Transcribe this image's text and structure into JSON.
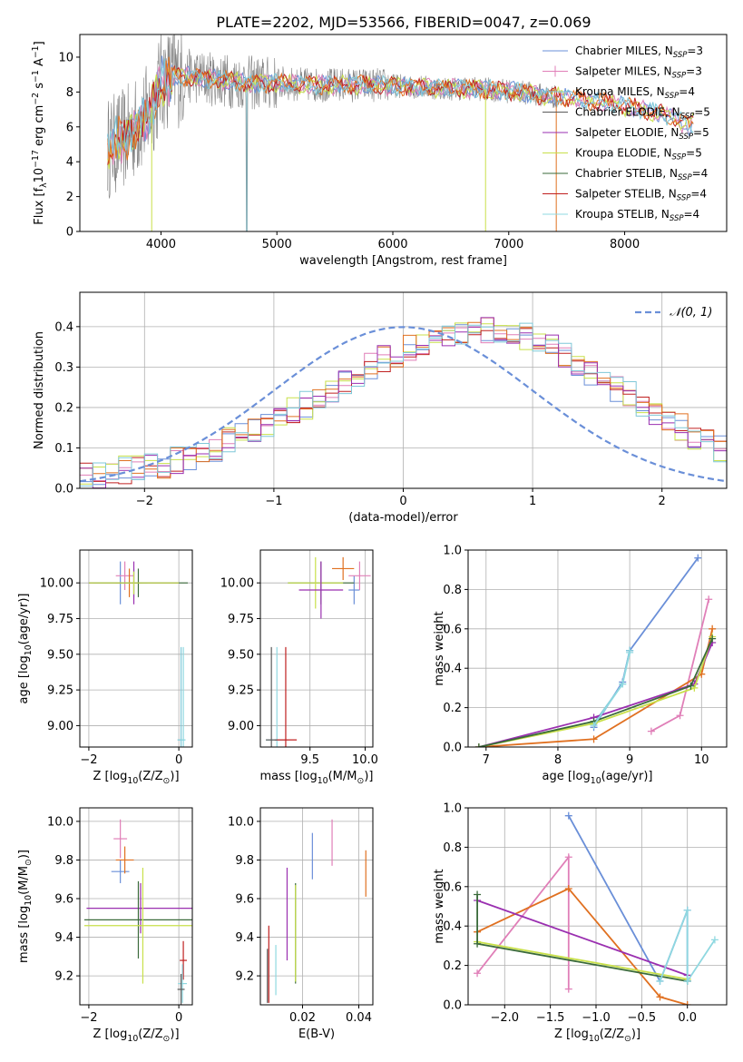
{
  "figure": {
    "title": "PLATE=2202, MJD=53566, FIBERID=0047, z=0.069"
  },
  "colors": {
    "chabrier_miles": "#6a8fd8",
    "salpeter_miles": "#e07fb8",
    "kroupa_miles": "#7fc8d8",
    "chabrier_elodie": "#5a5a5a",
    "salpeter_elodie": "#9a2fb0",
    "kroupa_elodie": "#c8e04a",
    "chabrier_stelib": "#3a6a3a",
    "salpeter_stelib": "#c02020",
    "kroupa_stelib": "#8fd8e0",
    "orange": "#e07020",
    "gray_data": "#808080",
    "normal_curve": "#6a8fd8",
    "grid": "#b0b0b0"
  },
  "chart_data": [
    {
      "id": "spectrum",
      "type": "line",
      "xlabel": "wavelength [Angstrom, rest frame]",
      "ylabel_parts": [
        "Flux [f",
        "λ",
        "10",
        "−17",
        " erg cm",
        "−2",
        " s",
        "−1",
        " A",
        "−1",
        "]"
      ],
      "xlim": [
        3300,
        8880
      ],
      "ylim": [
        0,
        11.3
      ],
      "xticks": [
        4000,
        5000,
        6000,
        7000,
        8000
      ],
      "yticks": [
        0,
        2,
        4,
        6,
        8,
        10
      ],
      "grid": false,
      "legend_position": "top-right",
      "legend": [
        {
          "label": "Chabrier MILES, N",
          "sub": "SSP",
          "tail": "=3",
          "color_key": "chabrier_miles"
        },
        {
          "label": "Salpeter MILES, N",
          "sub": "SSP",
          "tail": "=3",
          "color_key": "salpeter_miles"
        },
        {
          "label": "Kroupa MILES, N",
          "sub": "SSP",
          "tail": "=4",
          "color_key": "kroupa_miles"
        },
        {
          "label": "Chabrier ELODIE, N",
          "sub": "SSP",
          "tail": "=5",
          "color_key": "chabrier_elodie"
        },
        {
          "label": "Salpeter ELODIE, N",
          "sub": "SSP",
          "tail": "=5",
          "color_key": "salpeter_elodie"
        },
        {
          "label": "Kroupa ELODIE, N",
          "sub": "SSP",
          "tail": "=5",
          "color_key": "kroupa_elodie"
        },
        {
          "label": "Chabrier STELIB, N",
          "sub": "SSP",
          "tail": "=4",
          "color_key": "chabrier_stelib"
        },
        {
          "label": "Salpeter STELIB, N",
          "sub": "SSP",
          "tail": "=4",
          "color_key": "salpeter_stelib"
        },
        {
          "label": "Kroupa STELIB, N",
          "sub": "SSP",
          "tail": "=4",
          "color_key": "kroupa_stelib"
        }
      ],
      "continuum": [
        [
          3500,
          4.6
        ],
        [
          3700,
          5.4
        ],
        [
          3900,
          6.8
        ],
        [
          4000,
          8.6
        ],
        [
          4100,
          8.9
        ],
        [
          4300,
          8.9
        ],
        [
          4500,
          8.7
        ],
        [
          4800,
          8.5
        ],
        [
          5000,
          8.5
        ],
        [
          5300,
          8.4
        ],
        [
          5600,
          8.4
        ],
        [
          5900,
          8.4
        ],
        [
          6200,
          8.3
        ],
        [
          6500,
          8.2
        ],
        [
          6700,
          8.2
        ],
        [
          6900,
          8.1
        ],
        [
          7100,
          8.0
        ],
        [
          7300,
          7.8
        ],
        [
          7600,
          7.6
        ],
        [
          7800,
          7.4
        ],
        [
          8000,
          7.2
        ],
        [
          8200,
          6.9
        ],
        [
          8400,
          6.6
        ],
        [
          8560,
          6.0
        ],
        [
          8600,
          6.4
        ]
      ]
    },
    {
      "id": "residual-hist",
      "type": "step",
      "xlabel": "(data-model)/error",
      "ylabel": "Normed distribution",
      "xlim": [
        -2.5,
        2.5
      ],
      "ylim": [
        0,
        0.485
      ],
      "xticks": [
        -2,
        -1,
        0,
        1,
        2
      ],
      "yticks": [
        0.0,
        0.1,
        0.2,
        0.3,
        0.4
      ],
      "grid": true,
      "legend_position": "top-right",
      "legend_label": "𝒩(0, 1)",
      "bin_width": 0.1,
      "bin_start": -2.5,
      "base_hist": [
        0.03,
        0.035,
        0.04,
        0.045,
        0.05,
        0.055,
        0.06,
        0.07,
        0.08,
        0.09,
        0.1,
        0.12,
        0.13,
        0.145,
        0.16,
        0.175,
        0.19,
        0.205,
        0.22,
        0.24,
        0.26,
        0.28,
        0.3,
        0.32,
        0.335,
        0.35,
        0.36,
        0.37,
        0.38,
        0.385,
        0.39,
        0.395,
        0.39,
        0.385,
        0.375,
        0.36,
        0.35,
        0.33,
        0.31,
        0.29,
        0.27,
        0.25,
        0.23,
        0.21,
        0.19,
        0.17,
        0.15,
        0.13,
        0.11,
        0.095
      ]
    },
    {
      "id": "age-vs-Z",
      "type": "errorbar",
      "xlabel_parts": [
        "Z [log",
        "10",
        "(Z/Z",
        "⊙",
        ")]"
      ],
      "ylabel_parts": [
        "age  [log",
        "10",
        "(age/yr)]"
      ],
      "xlim": [
        -2.2,
        0.3
      ],
      "ylim": [
        8.85,
        10.23
      ],
      "xticks": [
        -2,
        0
      ],
      "yticks": [
        9.0,
        9.25,
        9.5,
        9.75,
        10.0
      ],
      "grid": true,
      "points": [
        {
          "x": -1.3,
          "y": 10.0,
          "xerr": 0.6,
          "yerr": 0.15,
          "c": "chabrier_miles"
        },
        {
          "x": -1.2,
          "y": 10.05,
          "xerr": 0.2,
          "yerr": 0.1,
          "c": "salpeter_miles"
        },
        {
          "x": -1.1,
          "y": 10.0,
          "xerr": 0.3,
          "yerr": 0.1,
          "c": "orange"
        },
        {
          "x": -1.0,
          "y": 10.0,
          "xerr": 0.3,
          "yerr": 0.1,
          "c": "kroupa_miles"
        },
        {
          "x": -1.0,
          "y": 10.0,
          "xerr": 1.0,
          "yerr": 0.15,
          "c": "salpeter_elodie"
        },
        {
          "x": -0.9,
          "y": 10.0,
          "xerr": 1.1,
          "yerr": 0.1,
          "c": "chabrier_stelib"
        },
        {
          "x": -1.0,
          "y": 10.0,
          "xerr": 1.0,
          "yerr": 0.08,
          "c": "kroupa_elodie"
        },
        {
          "x": 0.05,
          "y": 8.9,
          "xerr": 0.08,
          "yerr": 0.65,
          "c": "kroupa_miles"
        },
        {
          "x": 0.1,
          "y": 8.9,
          "xerr": 0.05,
          "yerr": 0.65,
          "c": "kroupa_stelib"
        }
      ]
    },
    {
      "id": "age-vs-mass",
      "type": "errorbar",
      "xlabel_parts": [
        "mass [log",
        "10",
        "(M/M",
        "⊙",
        ")]"
      ],
      "xlim": [
        9.05,
        10.07
      ],
      "ylim": [
        8.85,
        10.23
      ],
      "xticks": [
        9.5,
        10.0
      ],
      "yticks": [
        9.0,
        9.25,
        9.5,
        9.75,
        10.0
      ],
      "grid": true,
      "points": [
        {
          "x": 9.9,
          "y": 9.95,
          "xerr": 0.05,
          "yerr": 0.1,
          "c": "chabrier_miles"
        },
        {
          "x": 9.95,
          "y": 10.05,
          "xerr": 0.1,
          "yerr": 0.1,
          "c": "salpeter_miles"
        },
        {
          "x": 9.8,
          "y": 10.1,
          "xerr": 0.1,
          "yerr": 0.08,
          "c": "orange"
        },
        {
          "x": 9.6,
          "y": 10.0,
          "xerr": 0.3,
          "yerr": 0.15,
          "c": "chabrier_stelib"
        },
        {
          "x": 9.55,
          "y": 10.0,
          "xerr": 0.25,
          "yerr": 0.18,
          "c": "kroupa_elodie"
        },
        {
          "x": 9.6,
          "y": 9.95,
          "xerr": 0.2,
          "yerr": 0.2,
          "c": "salpeter_elodie"
        },
        {
          "x": 9.2,
          "y": 8.9,
          "xerr": 0.1,
          "yerr": 0.65,
          "c": "kroupa_stelib"
        },
        {
          "x": 9.28,
          "y": 8.9,
          "xerr": 0.1,
          "yerr": 0.65,
          "c": "salpeter_stelib"
        },
        {
          "x": 9.15,
          "y": 8.9,
          "xerr": 0.05,
          "yerr": 0.65,
          "c": "chabrier_elodie"
        }
      ]
    },
    {
      "id": "massweight-vs-age",
      "type": "line",
      "xlabel_parts": [
        "age  [log",
        "10",
        "(age/yr)]"
      ],
      "ylabel": "mass weight",
      "xlim": [
        6.75,
        10.35
      ],
      "ylim": [
        0,
        1.0
      ],
      "xticks": [
        7,
        8,
        9,
        10
      ],
      "yticks": [
        0.0,
        0.2,
        0.4,
        0.6,
        0.8,
        1.0
      ],
      "grid": true,
      "series": [
        {
          "c": "chabrier_miles",
          "x": [
            8.5,
            8.9,
            9.0,
            9.95
          ],
          "y": [
            0.1,
            0.33,
            0.49,
            0.96
          ]
        },
        {
          "c": "salpeter_miles",
          "x": [
            9.3,
            9.7,
            10.1
          ],
          "y": [
            0.08,
            0.16,
            0.75
          ]
        },
        {
          "c": "kroupa_miles",
          "x": [
            8.5,
            8.9,
            9.0
          ],
          "y": [
            0.12,
            0.32,
            0.49
          ]
        },
        {
          "c": "orange",
          "x": [
            6.9,
            8.5,
            10.0,
            10.15
          ],
          "y": [
            0.0,
            0.04,
            0.37,
            0.6
          ]
        },
        {
          "c": "salpeter_elodie",
          "x": [
            6.9,
            8.5,
            9.9,
            10.15
          ],
          "y": [
            0.0,
            0.15,
            0.32,
            0.53
          ]
        },
        {
          "c": "kroupa_elodie",
          "x": [
            6.9,
            8.5,
            9.9,
            10.15
          ],
          "y": [
            0.0,
            0.12,
            0.3,
            0.56
          ]
        },
        {
          "c": "chabrier_stelib",
          "x": [
            6.9,
            8.5,
            9.85,
            10.15
          ],
          "y": [
            0.0,
            0.13,
            0.31,
            0.55
          ]
        },
        {
          "c": "kroupa_stelib",
          "x": [
            8.5,
            8.9,
            9.0
          ],
          "y": [
            0.11,
            0.32,
            0.48
          ]
        }
      ]
    },
    {
      "id": "mass-vs-Z",
      "type": "errorbar",
      "xlabel_parts": [
        "Z [log",
        "10",
        "(Z/Z",
        "⊙",
        ")]"
      ],
      "ylabel_parts": [
        "mass [log",
        "10",
        "(M/M",
        "⊙",
        ")]"
      ],
      "xlim": [
        -2.2,
        0.3
      ],
      "ylim": [
        9.05,
        10.07
      ],
      "xticks": [
        -2,
        0
      ],
      "yticks": [
        9.2,
        9.4,
        9.6,
        9.8,
        10.0
      ],
      "grid": true,
      "points": [
        {
          "x": -1.3,
          "y": 9.74,
          "xerr": 0.2,
          "yerr": 0.06,
          "c": "chabrier_miles"
        },
        {
          "x": -1.3,
          "y": 9.91,
          "xerr": 0.15,
          "yerr": 0.1,
          "c": "salpeter_miles"
        },
        {
          "x": -1.2,
          "y": 9.8,
          "xerr": 0.2,
          "yerr": 0.07,
          "c": "orange"
        },
        {
          "x": -0.85,
          "y": 9.55,
          "xerr": 1.2,
          "yerr": 0.13,
          "c": "salpeter_elodie"
        },
        {
          "x": -0.9,
          "y": 9.49,
          "xerr": 1.2,
          "yerr": 0.2,
          "c": "chabrier_stelib"
        },
        {
          "x": -0.8,
          "y": 9.46,
          "xerr": 1.3,
          "yerr": 0.3,
          "c": "kroupa_elodie"
        },
        {
          "x": 0.1,
          "y": 9.28,
          "xerr": 0.08,
          "yerr": 0.1,
          "c": "salpeter_stelib"
        },
        {
          "x": 0.08,
          "y": 9.16,
          "xerr": 0.1,
          "yerr": 0.1,
          "c": "kroupa_stelib"
        },
        {
          "x": 0.05,
          "y": 9.13,
          "xerr": 0.08,
          "yerr": 0.08,
          "c": "chabrier_elodie"
        }
      ]
    },
    {
      "id": "mass-vs-ebv",
      "type": "errorbar",
      "xlabel": "E(B-V)",
      "xlim": [
        0.005,
        0.045
      ],
      "ylim": [
        9.05,
        10.07
      ],
      "xticks": [
        0.02,
        0.04
      ],
      "yticks": [
        9.2,
        9.4,
        9.6,
        9.8,
        10.0
      ],
      "grid": true,
      "points": [
        {
          "x": 0.0235,
          "y": 9.82,
          "xerr": 0,
          "yerr": 0.12,
          "c": "chabrier_miles"
        },
        {
          "x": 0.0305,
          "y": 9.89,
          "xerr": 0,
          "yerr": 0.12,
          "c": "salpeter_miles"
        },
        {
          "x": 0.0425,
          "y": 9.73,
          "xerr": 0,
          "yerr": 0.12,
          "c": "orange"
        },
        {
          "x": 0.0175,
          "y": 9.42,
          "xerr": 0,
          "yerr": 0.26,
          "c": "chabrier_stelib"
        },
        {
          "x": 0.0175,
          "y": 9.42,
          "xerr": 0,
          "yerr": 0.25,
          "c": "kroupa_elodie"
        },
        {
          "x": 0.0145,
          "y": 9.52,
          "xerr": 0,
          "yerr": 0.24,
          "c": "salpeter_elodie"
        },
        {
          "x": 0.008,
          "y": 9.26,
          "xerr": 0,
          "yerr": 0.2,
          "c": "salpeter_stelib"
        },
        {
          "x": 0.0105,
          "y": 9.23,
          "xerr": 0,
          "yerr": 0.13,
          "c": "kroupa_stelib"
        },
        {
          "x": 0.0075,
          "y": 9.2,
          "xerr": 0,
          "yerr": 0.14,
          "c": "chabrier_elodie"
        }
      ]
    },
    {
      "id": "massweight-vs-Z",
      "type": "line",
      "xlabel_parts": [
        "Z [log",
        "10",
        "(Z/Z",
        "⊙",
        ")]"
      ],
      "ylabel": "mass weight",
      "xlim": [
        -2.4,
        0.43
      ],
      "ylim": [
        0,
        1.0
      ],
      "xticks": [
        -2.0,
        -1.5,
        -1.0,
        -0.5,
        0.0
      ],
      "yticks": [
        0.0,
        0.2,
        0.4,
        0.6,
        0.8,
        1.0
      ],
      "grid": true,
      "series": [
        {
          "c": "chabrier_miles",
          "x": [
            -1.3,
            -0.3,
            0.0,
            0.0
          ],
          "y": [
            0.96,
            0.12,
            0.48,
            0.12
          ]
        },
        {
          "c": "salpeter_miles",
          "x": [
            -2.3,
            -1.3,
            -1.3
          ],
          "y": [
            0.16,
            0.75,
            0.08
          ]
        },
        {
          "c": "orange",
          "x": [
            -2.3,
            -1.3,
            -0.3,
            0.0
          ],
          "y": [
            0.37,
            0.59,
            0.04,
            0.0
          ]
        },
        {
          "c": "salpeter_elodie",
          "x": [
            -2.3,
            0.0
          ],
          "y": [
            0.53,
            0.15
          ]
        },
        {
          "c": "kroupa_elodie",
          "x": [
            -2.3,
            0.0
          ],
          "y": [
            0.32,
            0.13
          ]
        },
        {
          "c": "chabrier_stelib",
          "x": [
            -2.3,
            -2.3,
            0.0
          ],
          "y": [
            0.56,
            0.31,
            0.12
          ]
        },
        {
          "c": "kroupa_stelib",
          "x": [
            -0.3,
            0.0,
            0.0,
            0.3
          ],
          "y": [
            0.12,
            0.48,
            0.12,
            0.33
          ]
        }
      ]
    }
  ]
}
